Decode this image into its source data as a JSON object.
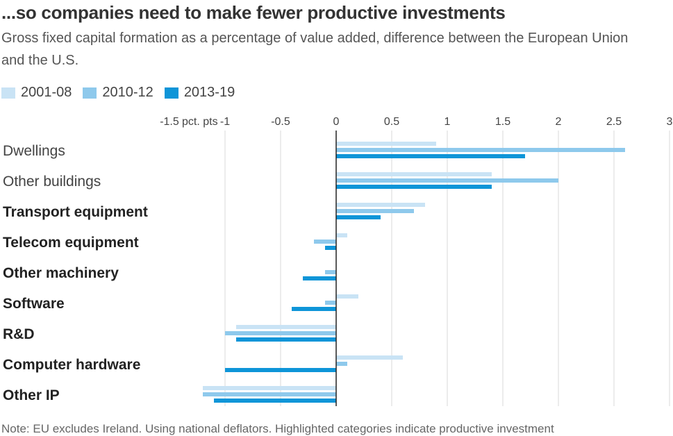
{
  "title": "...so companies need to make fewer productive investments",
  "subtitle": "Gross fixed capital formation as a percentage of value added, difference between the European Union and the U.S.",
  "note": "Note: EU excludes Ireland. Using national deflators. Highlighted categories indicate productive investment",
  "colors": {
    "2001-08": "#c9e3f5",
    "2010-12": "#8ec9ec",
    "2013-19": "#0e95d8"
  },
  "chart_data": {
    "type": "bar",
    "orientation": "horizontal",
    "title": "...so companies need to make fewer productive investments",
    "subtitle": "Gross fixed capital formation as a percentage of value added, difference between the European Union and the U.S.",
    "axis_unit_label": "pct. pts",
    "xlim": [
      -1.5,
      3
    ],
    "ticks": [
      -1.5,
      -1,
      -0.5,
      0,
      0.5,
      1,
      1.5,
      2,
      2.5,
      3
    ],
    "tick_labels": [
      "-1.5",
      "-1",
      "-0.5",
      "0",
      "0.5",
      "1",
      "1.5",
      "2",
      "2.5",
      "3"
    ],
    "legend_position": "top-left",
    "grid": true,
    "categories": [
      "Dwellings",
      "Other buildings",
      "Transport equipment",
      "Telecom equipment",
      "Other machinery",
      "Software",
      "R&D",
      "Computer hardware",
      "Other IP"
    ],
    "highlighted": [
      false,
      false,
      true,
      true,
      true,
      true,
      true,
      true,
      true
    ],
    "series": [
      {
        "name": "2001-08",
        "values": [
          0.9,
          1.4,
          0.8,
          0.1,
          0.0,
          0.2,
          -0.9,
          0.6,
          -1.2
        ]
      },
      {
        "name": "2010-12",
        "values": [
          2.6,
          2.0,
          0.7,
          -0.2,
          -0.1,
          -0.1,
          -1.0,
          0.1,
          -1.2
        ]
      },
      {
        "name": "2013-19",
        "values": [
          1.7,
          1.4,
          0.4,
          -0.1,
          -0.3,
          -0.4,
          -0.9,
          -1.0,
          -1.1
        ]
      }
    ]
  }
}
